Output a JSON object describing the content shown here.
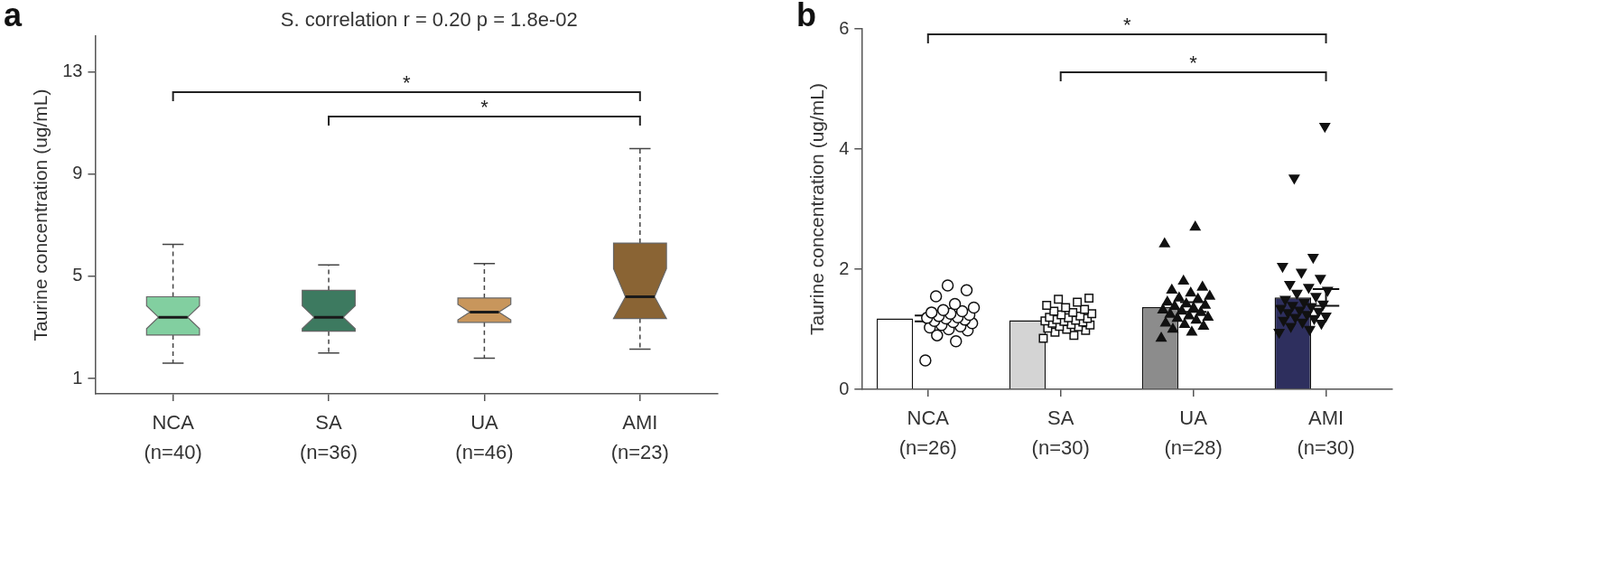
{
  "chart_data": [
    {
      "type": "box",
      "title": "a",
      "annotation": "S. correlation r = 0.20 p = 1.8e-02",
      "y_label": "Taurine concentration (ug/mL)",
      "categories": [
        [
          "NCA",
          "(n=40)"
        ],
        [
          "SA",
          "(n=36)"
        ],
        [
          "UA",
          "(n=46)"
        ],
        [
          "AMI",
          "(n=23)"
        ]
      ],
      "colors": [
        "#82cfa0",
        "#3d7a60",
        "#c8965c",
        "#8a6434"
      ],
      "whisker_low": [
        1.6,
        2.0,
        1.8,
        2.15
      ],
      "q1": [
        2.7,
        2.85,
        3.2,
        3.35
      ],
      "median": [
        3.4,
        3.4,
        3.6,
        4.2
      ],
      "q3": [
        4.2,
        4.45,
        4.15,
        6.3
      ],
      "whisker_high": [
        6.25,
        5.45,
        5.5,
        10.0
      ],
      "notch_low": [
        2.95,
        2.95,
        3.3,
        3.35
      ],
      "notch_high": [
        3.85,
        3.85,
        3.9,
        5.3
      ],
      "ylim": [
        0.4,
        14.4
      ],
      "yticks": [
        1,
        5,
        9,
        13
      ],
      "grid": false,
      "brackets": [
        {
          "from": "NCA",
          "to": "AMI",
          "label": "*"
        },
        {
          "from": "SA",
          "to": "AMI",
          "label": "*"
        }
      ]
    },
    {
      "type": "bar",
      "title": "b",
      "y_label": "Taurine concentration (ug/mL)",
      "categories": [
        [
          "NCA",
          "(n=26)"
        ],
        [
          "SA",
          "(n=30)"
        ],
        [
          "UA",
          "(n=28)"
        ],
        [
          "AMI",
          "(n=30)"
        ]
      ],
      "colors": [
        "#ffffff",
        "#d4d4d4",
        "#8c8c8c",
        "#2e2f5e"
      ],
      "values": [
        1.18,
        1.15,
        1.37,
        1.53
      ],
      "errors": [
        0.05,
        0.03,
        0.08,
        0.14
      ],
      "marker": [
        "circle",
        "square",
        "triangle",
        "triangle_down"
      ],
      "points": [
        [
          0.48,
          0.8,
          0.9,
          0.98,
          1.0,
          1.03,
          1.05,
          1.07,
          1.1,
          1.12,
          1.14,
          1.16,
          1.18,
          1.19,
          1.2,
          1.22,
          1.24,
          1.26,
          1.28,
          1.3,
          1.32,
          1.36,
          1.42,
          1.55,
          1.65,
          1.73
        ],
        [
          0.85,
          0.9,
          0.95,
          0.98,
          1.0,
          1.02,
          1.04,
          1.05,
          1.07,
          1.08,
          1.1,
          1.12,
          1.13,
          1.14,
          1.15,
          1.16,
          1.18,
          1.19,
          1.2,
          1.22,
          1.24,
          1.26,
          1.28,
          1.3,
          1.33,
          1.36,
          1.4,
          1.45,
          1.5,
          1.52
        ],
        [
          0.85,
          0.95,
          1.0,
          1.05,
          1.08,
          1.1,
          1.15,
          1.18,
          1.2,
          1.22,
          1.25,
          1.28,
          1.3,
          1.32,
          1.35,
          1.38,
          1.4,
          1.42,
          1.45,
          1.5,
          1.52,
          1.55,
          1.6,
          1.65,
          1.7,
          1.8,
          2.42,
          2.7
        ],
        [
          0.95,
          1.0,
          1.05,
          1.1,
          1.12,
          1.15,
          1.18,
          1.2,
          1.22,
          1.25,
          1.28,
          1.3,
          1.32,
          1.35,
          1.38,
          1.4,
          1.42,
          1.45,
          1.5,
          1.55,
          1.6,
          1.65,
          1.7,
          1.75,
          1.85,
          1.95,
          2.05,
          2.2,
          3.52,
          4.38
        ]
      ],
      "ylim": [
        0,
        6
      ],
      "yticks": [
        0,
        2,
        4,
        6
      ],
      "grid": false,
      "brackets": [
        {
          "from": "NCA",
          "to": "AMI",
          "label": "*"
        },
        {
          "from": "SA",
          "to": "AMI",
          "label": "*"
        }
      ]
    }
  ]
}
